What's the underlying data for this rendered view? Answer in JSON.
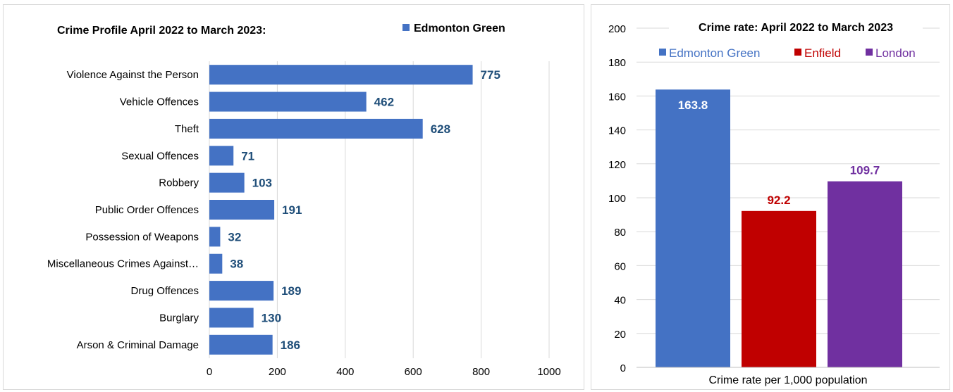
{
  "chart_data": [
    {
      "type": "bar",
      "orientation": "horizontal",
      "title": "Crime Profile April 2022 to March 2023:",
      "categories": [
        "Violence Against the Person",
        "Vehicle Offences",
        "Theft",
        "Sexual Offences",
        "Robbery",
        "Public Order Offences",
        "Possession of Weapons",
        "Miscellaneous Crimes Against…",
        "Drug Offences",
        "Burglary",
        "Arson & Criminal Damage"
      ],
      "series": [
        {
          "name": "Edmonton Green",
          "values": [
            775,
            462,
            628,
            71,
            103,
            191,
            32,
            38,
            189,
            130,
            186
          ]
        }
      ],
      "data_labels": [
        "775",
        "462",
        "628",
        "71",
        "103",
        "191",
        "32",
        "38",
        "189",
        "130",
        "186"
      ],
      "xlim": [
        0,
        1000
      ],
      "x_ticks": [
        "0",
        "200",
        "400",
        "600",
        "800",
        "1000"
      ],
      "grid": true,
      "legend_position": "top-right",
      "colors": {
        "bar": "#4472c4",
        "label": "#1f4e79",
        "grid": "#d9d9d9",
        "text": "#000000"
      }
    },
    {
      "type": "bar",
      "title": "Crime rate: April 2022 to March 2023",
      "xlabel": "Crime rate per 1,000 population",
      "series": [
        {
          "name": "Edmonton Green",
          "values": [
            163.8
          ],
          "color": "#4472c4",
          "label_color": "#ffffff"
        },
        {
          "name": "Enfield",
          "values": [
            92.2
          ],
          "color": "#c00000",
          "label_color": "#c00000"
        },
        {
          "name": "London",
          "values": [
            109.7
          ],
          "color": "#7030a0",
          "label_color": "#7030a0"
        }
      ],
      "data_labels": [
        "163.8",
        "92.2",
        "109.7"
      ],
      "ylim": [
        0,
        200
      ],
      "y_ticks": [
        "0",
        "20",
        "40",
        "60",
        "80",
        "100",
        "120",
        "140",
        "160",
        "180",
        "200"
      ],
      "grid": true,
      "legend_position": "top"
    }
  ]
}
